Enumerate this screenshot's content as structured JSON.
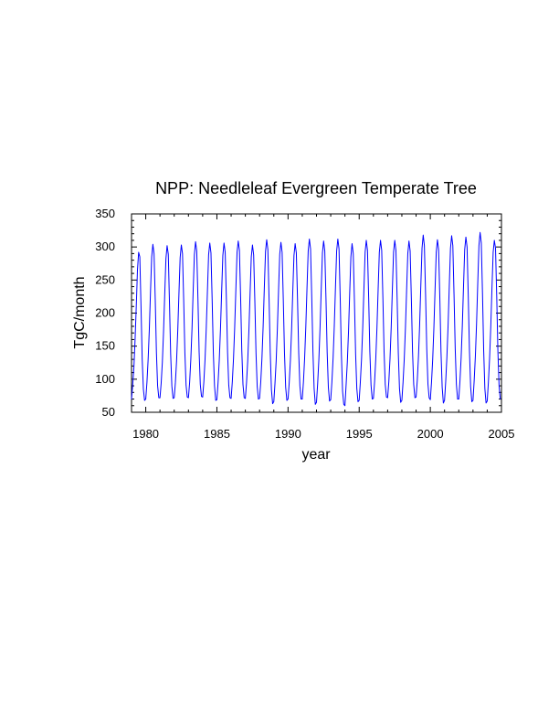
{
  "chart_data": {
    "type": "line",
    "title": "NPP: Needleleaf Evergreen Temperate Tree",
    "xlabel": "year",
    "ylabel": "TgC/month",
    "xlim": [
      1979,
      2005
    ],
    "ylim": [
      50,
      350
    ],
    "x_ticks": [
      1980,
      1985,
      1990,
      1995,
      2000,
      2005
    ],
    "y_ticks": [
      50,
      100,
      150,
      200,
      250,
      300,
      350
    ],
    "grid": false,
    "line_color": "#0000ff",
    "series": [
      {
        "x": [
          1979.0,
          1979.083,
          1979.167,
          1979.25,
          1979.333,
          1979.417,
          1979.5,
          1979.583,
          1979.667,
          1979.75,
          1979.833,
          1979.917,
          1980.0,
          1980.083,
          1980.167,
          1980.25,
          1980.333,
          1980.417,
          1980.5,
          1980.583,
          1980.667,
          1980.75,
          1980.833,
          1980.917,
          1981.0,
          1981.083,
          1981.167,
          1981.25,
          1981.333,
          1981.417,
          1981.5,
          1981.583,
          1981.667,
          1981.75,
          1981.833,
          1981.917,
          1982.0,
          1982.083,
          1982.167,
          1982.25,
          1982.333,
          1982.417,
          1982.5,
          1982.583,
          1982.667,
          1982.75,
          1982.833,
          1982.917,
          1983.0,
          1983.083,
          1983.167,
          1983.25,
          1983.333,
          1983.417,
          1983.5,
          1983.583,
          1983.667,
          1983.75,
          1983.833,
          1983.917,
          1984.0,
          1984.083,
          1984.167,
          1984.25,
          1984.333,
          1984.417,
          1984.5,
          1984.583,
          1984.667,
          1984.75,
          1984.833,
          1984.917,
          1985.0,
          1985.083,
          1985.167,
          1985.25,
          1985.333,
          1985.417,
          1985.5,
          1985.583,
          1985.667,
          1985.75,
          1985.833,
          1985.917,
          1986.0,
          1986.083,
          1986.167,
          1986.25,
          1986.333,
          1986.417,
          1986.5,
          1986.583,
          1986.667,
          1986.75,
          1986.833,
          1986.917,
          1987.0,
          1987.083,
          1987.167,
          1987.25,
          1987.333,
          1987.417,
          1987.5,
          1987.583,
          1987.667,
          1987.75,
          1987.833,
          1987.917,
          1988.0,
          1988.083,
          1988.167,
          1988.25,
          1988.333,
          1988.417,
          1988.5,
          1988.583,
          1988.667,
          1988.75,
          1988.833,
          1988.917,
          1989.0,
          1989.083,
          1989.167,
          1989.25,
          1989.333,
          1989.417,
          1989.5,
          1989.583,
          1989.667,
          1989.75,
          1989.833,
          1989.917,
          1990.0,
          1990.083,
          1990.167,
          1990.25,
          1990.333,
          1990.417,
          1990.5,
          1990.583,
          1990.667,
          1990.75,
          1990.833,
          1990.917,
          1991.0,
          1991.083,
          1991.167,
          1991.25,
          1991.333,
          1991.417,
          1991.5,
          1991.583,
          1991.667,
          1991.75,
          1991.833,
          1991.917,
          1992.0,
          1992.083,
          1992.167,
          1992.25,
          1992.333,
          1992.417,
          1992.5,
          1992.583,
          1992.667,
          1992.75,
          1992.833,
          1992.917,
          1993.0,
          1993.083,
          1993.167,
          1993.25,
          1993.333,
          1993.417,
          1993.5,
          1993.583,
          1993.667,
          1993.75,
          1993.833,
          1993.917,
          1994.0,
          1994.083,
          1994.167,
          1994.25,
          1994.333,
          1994.417,
          1994.5,
          1994.583,
          1994.667,
          1994.75,
          1994.833,
          1994.917,
          1995.0,
          1995.083,
          1995.167,
          1995.25,
          1995.333,
          1995.417,
          1995.5,
          1995.583,
          1995.667,
          1995.75,
          1995.833,
          1995.917,
          1996.0,
          1996.083,
          1996.167,
          1996.25,
          1996.333,
          1996.417,
          1996.5,
          1996.583,
          1996.667,
          1996.75,
          1996.833,
          1996.917,
          1997.0,
          1997.083,
          1997.167,
          1997.25,
          1997.333,
          1997.417,
          1997.5,
          1997.583,
          1997.667,
          1997.75,
          1997.833,
          1997.917,
          1998.0,
          1998.083,
          1998.167,
          1998.25,
          1998.333,
          1998.417,
          1998.5,
          1998.583,
          1998.667,
          1998.75,
          1998.833,
          1998.917,
          1999.0,
          1999.083,
          1999.167,
          1999.25,
          1999.333,
          1999.417,
          1999.5,
          1999.583,
          1999.667,
          1999.75,
          1999.833,
          1999.917,
          2000.0,
          2000.083,
          2000.167,
          2000.25,
          2000.333,
          2000.417,
          2000.5,
          2000.583,
          2000.667,
          2000.75,
          2000.833,
          2000.917,
          2001.0,
          2001.083,
          2001.167,
          2001.25,
          2001.333,
          2001.417,
          2001.5,
          2001.583,
          2001.667,
          2001.75,
          2001.833,
          2001.917,
          2002.0,
          2002.083,
          2002.167,
          2002.25,
          2002.333,
          2002.417,
          2002.5,
          2002.583,
          2002.667,
          2002.75,
          2002.833,
          2002.917,
          2003.0,
          2003.083,
          2003.167,
          2003.25,
          2003.333,
          2003.417,
          2003.5,
          2003.583,
          2003.667,
          2003.75,
          2003.833,
          2003.917,
          2004.0,
          2004.083,
          2004.167,
          2004.25,
          2004.333,
          2004.417,
          2004.5,
          2004.583,
          2004.667,
          2004.75,
          2004.833,
          2004.917
        ],
        "y": [
          70,
          92,
          118,
          160,
          210,
          265,
          292,
          285,
          210,
          130,
          85,
          68,
          70,
          95,
          130,
          175,
          232,
          285,
          304,
          290,
          220,
          140,
          90,
          72,
          72,
          94,
          126,
          172,
          228,
          282,
          302,
          289,
          216,
          138,
          90,
          71,
          72,
          95,
          128,
          174,
          230,
          284,
          303,
          290,
          219,
          140,
          91,
          73,
          72,
          95,
          130,
          176,
          234,
          288,
          308,
          294,
          222,
          142,
          92,
          74,
          73,
          96,
          130,
          176,
          232,
          288,
          306,
          291,
          220,
          140,
          90,
          68,
          69,
          95,
          129,
          175,
          232,
          287,
          306,
          292,
          221,
          141,
          91,
          72,
          71,
          96,
          131,
          178,
          236,
          292,
          309,
          295,
          224,
          143,
          92,
          72,
          71,
          95,
          128,
          174,
          230,
          285,
          303,
          288,
          218,
          139,
          89,
          70,
          71,
          96,
          132,
          180,
          238,
          293,
          311,
          296,
          222,
          140,
          84,
          63,
          66,
          94,
          128,
          176,
          234,
          289,
          307,
          292,
          220,
          140,
          88,
          68,
          70,
          95,
          129,
          175,
          232,
          287,
          305,
          291,
          220,
          140,
          90,
          70,
          70,
          96,
          132,
          180,
          238,
          294,
          312,
          297,
          224,
          142,
          86,
          62,
          65,
          94,
          130,
          178,
          236,
          291,
          309,
          294,
          222,
          141,
          88,
          67,
          69,
          96,
          132,
          180,
          238,
          294,
          312,
          297,
          223,
          138,
          82,
          62,
          60,
          92,
          126,
          172,
          230,
          285,
          305,
          290,
          218,
          138,
          86,
          66,
          68,
          96,
          131,
          178,
          236,
          292,
          310,
          295,
          223,
          142,
          91,
          70,
          71,
          96,
          131,
          178,
          236,
          292,
          310,
          295,
          223,
          142,
          92,
          73,
          72,
          96,
          131,
          178,
          236,
          292,
          310,
          295,
          223,
          140,
          86,
          65,
          68,
          95,
          130,
          177,
          234,
          290,
          309,
          294,
          222,
          142,
          92,
          72,
          73,
          98,
          134,
          182,
          242,
          298,
          318,
          302,
          228,
          146,
          93,
          72,
          69,
          95,
          130,
          177,
          235,
          292,
          311,
          296,
          224,
          142,
          88,
          64,
          68,
          97,
          134,
          182,
          241,
          298,
          317,
          302,
          228,
          146,
          92,
          70,
          70,
          97,
          133,
          181,
          240,
          296,
          315,
          300,
          226,
          144,
          89,
          66,
          68,
          98,
          135,
          184,
          244,
          302,
          322,
          306,
          230,
          144,
          86,
          64,
          67,
          96,
          132,
          180,
          238,
          292,
          310,
          298,
          226,
          142,
          90,
          70
        ]
      }
    ]
  }
}
